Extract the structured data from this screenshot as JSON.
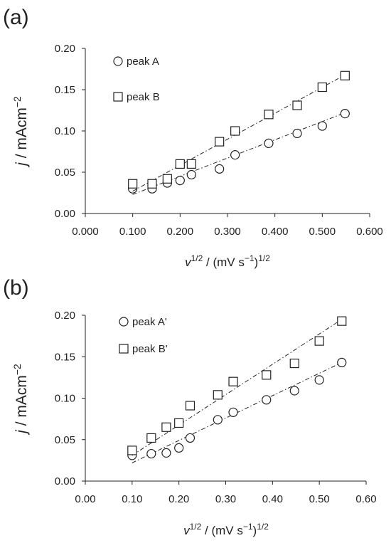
{
  "chart_data": [
    {
      "type": "scatter",
      "panel_label": "(a)",
      "xlabel": "v1/2 / (mV s−1)1/2",
      "ylabel": "j / mAcm−2",
      "xlim": [
        0.0,
        0.6
      ],
      "ylim": [
        0.0,
        0.2
      ],
      "xticks": [
        "0.000",
        "0.100",
        "0.200",
        "0.300",
        "0.400",
        "0.500",
        "0.600"
      ],
      "yticks": [
        "0.00",
        "0.05",
        "0.10",
        "0.15",
        "0.20"
      ],
      "legend_placement": "top-left",
      "series": [
        {
          "name": "peak A",
          "marker": "circle",
          "x": [
            0.1,
            0.141,
            0.173,
            0.2,
            0.224,
            0.283,
            0.316,
            0.387,
            0.447,
            0.5,
            0.548
          ],
          "y": [
            0.03,
            0.03,
            0.037,
            0.04,
            0.047,
            0.054,
            0.071,
            0.085,
            0.097,
            0.106,
            0.121
          ],
          "fit": [
            [
              0.1,
              0.023
            ],
            [
              0.548,
              0.122
            ]
          ]
        },
        {
          "name": "peak B",
          "marker": "square",
          "x": [
            0.1,
            0.141,
            0.173,
            0.2,
            0.224,
            0.283,
            0.316,
            0.387,
            0.447,
            0.5,
            0.548
          ],
          "y": [
            0.036,
            0.036,
            0.042,
            0.06,
            0.06,
            0.087,
            0.1,
            0.12,
            0.131,
            0.153,
            0.167
          ],
          "fit": [
            [
              0.1,
              0.027
            ],
            [
              0.548,
              0.168
            ]
          ]
        }
      ]
    },
    {
      "type": "scatter",
      "panel_label": "(b)",
      "xlabel": "v1/2 / (mV s−1)1/2",
      "ylabel": "j / mAcm−2",
      "xlim": [
        0.0,
        0.6
      ],
      "ylim": [
        0.0,
        0.2
      ],
      "xticks": [
        "0.00",
        "0.10",
        "0.20",
        "0.30",
        "0.40",
        "0.50",
        "0.60"
      ],
      "yticks": [
        "0.00",
        "0.05",
        "0.10",
        "0.15",
        "0.20"
      ],
      "legend_placement": "top-left",
      "series": [
        {
          "name": "peak A'",
          "marker": "circle",
          "x": [
            0.1,
            0.141,
            0.173,
            0.2,
            0.224,
            0.283,
            0.316,
            0.387,
            0.447,
            0.5,
            0.548
          ],
          "y": [
            0.031,
            0.033,
            0.034,
            0.04,
            0.052,
            0.074,
            0.083,
            0.098,
            0.109,
            0.122,
            0.143
          ],
          "fit": [
            [
              0.1,
              0.022
            ],
            [
              0.548,
              0.143
            ]
          ]
        },
        {
          "name": "peak B'",
          "marker": "square",
          "x": [
            0.1,
            0.141,
            0.173,
            0.2,
            0.224,
            0.283,
            0.316,
            0.387,
            0.447,
            0.5,
            0.548
          ],
          "y": [
            0.037,
            0.052,
            0.065,
            0.07,
            0.091,
            0.104,
            0.12,
            0.128,
            0.142,
            0.169,
            0.193
          ],
          "fit": [
            [
              0.1,
              0.031
            ],
            [
              0.548,
              0.195
            ]
          ]
        }
      ]
    }
  ]
}
